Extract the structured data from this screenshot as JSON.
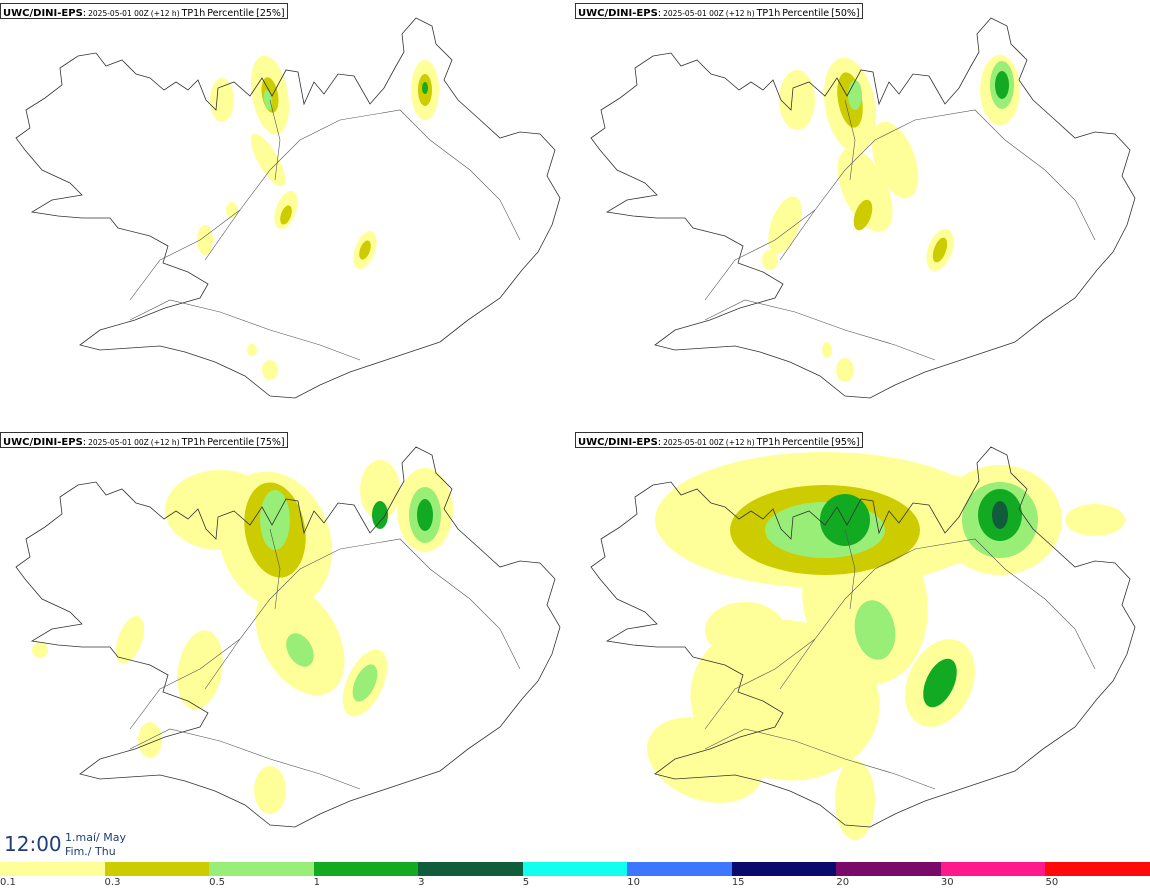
{
  "panels": [
    {
      "model": "UWC/DINI-EPS",
      "run": "2025-05-01 00Z",
      "lead": "(+12 h)",
      "variable": "TP1h",
      "percentile_label": "Percentile",
      "percentile": "[25%]"
    },
    {
      "model": "UWC/DINI-EPS",
      "run": "2025-05-01 00Z",
      "lead": "(+12 h)",
      "variable": "TP1h",
      "percentile_label": "Percentile",
      "percentile": "[50%]"
    },
    {
      "model": "UWC/DINI-EPS",
      "run": "2025-05-01 00Z",
      "lead": "(+12 h)",
      "variable": "TP1h",
      "percentile_label": "Percentile",
      "percentile": "[75%]"
    },
    {
      "model": "UWC/DINI-EPS",
      "run": "2025-05-01 00Z",
      "lead": "(+12 h)",
      "variable": "TP1h",
      "percentile_label": "Percentile",
      "percentile": "[95%]"
    }
  ],
  "valid_time": {
    "time": "12:00",
    "date_line1": "1.maí/ May",
    "date_line2": "Fim./ Thu"
  },
  "legend": {
    "bins": [
      {
        "label": "0.1",
        "color": "#ffff99"
      },
      {
        "label": "0.3",
        "color": "#cccc00"
      },
      {
        "label": "0.5",
        "color": "#99ee77"
      },
      {
        "label": "1",
        "color": "#12aa22"
      },
      {
        "label": "3",
        "color": "#115c3a"
      },
      {
        "label": "5",
        "color": "#11ffee"
      },
      {
        "label": "10",
        "color": "#3d77ff"
      },
      {
        "label": "15",
        "color": "#0a0a6e"
      },
      {
        "label": "20",
        "color": "#7a0a6a"
      },
      {
        "label": "30",
        "color": "#ff1a8c"
      },
      {
        "label": "50",
        "color": "#ff0a0a"
      }
    ]
  }
}
